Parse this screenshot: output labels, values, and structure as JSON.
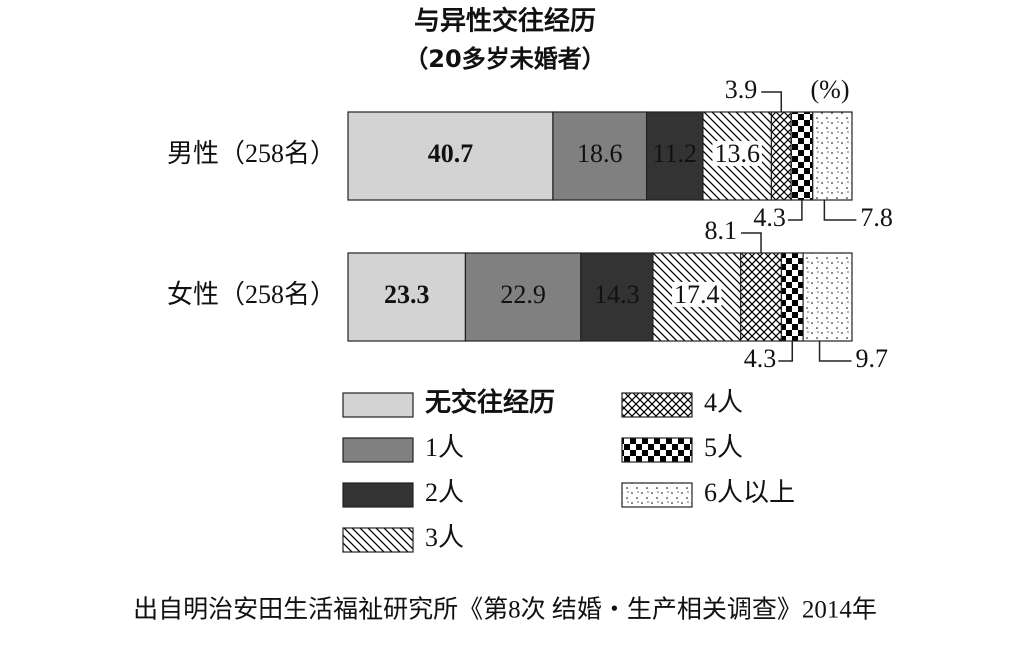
{
  "chart_data": {
    "type": "stacked-bar-horizontal",
    "title": "与异性交往经历",
    "subtitle": "（20多岁未婚者）",
    "unit": "(%)",
    "categories": [
      "男性（258名）",
      "女性（258名）"
    ],
    "series": [
      {
        "name": "无交往经历",
        "color": "#d3d3d3",
        "values": [
          40.7,
          23.3
        ]
      },
      {
        "name": "1人",
        "color": "#808080",
        "values": [
          18.6,
          22.9
        ]
      },
      {
        "name": "2人",
        "color": "#333333",
        "values": [
          11.2,
          14.3
        ]
      },
      {
        "name": "3人",
        "color": "#000000",
        "pattern": "diagonal",
        "values": [
          13.6,
          17.4
        ]
      },
      {
        "name": "4人",
        "color": "#000000",
        "pattern": "crosshatch",
        "values": [
          3.9,
          8.1
        ]
      },
      {
        "name": "5人",
        "color": "#000000",
        "pattern": "checker",
        "values": [
          4.3,
          4.3
        ]
      },
      {
        "name": "6人以上",
        "color": "#000000",
        "pattern": "dots",
        "values": [
          7.8,
          9.7
        ]
      }
    ],
    "source": "出自明治安田生活福祉研究所《第8次 结婚・生产相关调查》2014年"
  }
}
